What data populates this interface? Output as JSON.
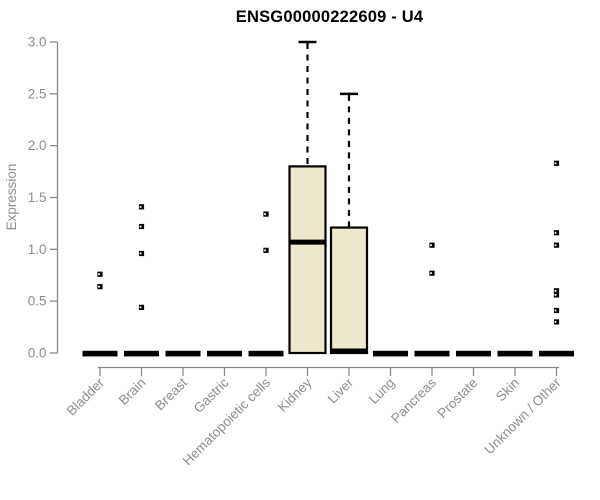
{
  "title": "ENSG00000222609 - U4",
  "chart_data": {
    "type": "boxplot",
    "title": "ENSG00000222609 - U4",
    "ylabel": "Expression",
    "xlabel": "",
    "ylim": [
      0,
      3.0
    ],
    "ytick_step": 0.5,
    "ytick_labels": [
      "0.0",
      "0.5",
      "1.0",
      "1.5",
      "2.0",
      "2.5",
      "3.0"
    ],
    "grid": false,
    "legend": false,
    "categories": [
      "Bladder",
      "Brain",
      "Breast",
      "Gastric",
      "Hematopoietic cells",
      "Kidney",
      "Liver",
      "Lung",
      "Pancreas",
      "Prostate",
      "Skin",
      "Unknown / Other"
    ],
    "boxes": [
      {
        "category": "Bladder",
        "whisker_low": 0,
        "q1": 0,
        "median": 0,
        "q3": 0,
        "whisker_high": 0,
        "outliers": [
          0.76,
          0.64
        ]
      },
      {
        "category": "Brain",
        "whisker_low": 0,
        "q1": 0,
        "median": 0,
        "q3": 0,
        "whisker_high": 0,
        "outliers": [
          1.41,
          1.22,
          0.96,
          0.44
        ]
      },
      {
        "category": "Breast",
        "whisker_low": 0,
        "q1": 0,
        "median": 0,
        "q3": 0,
        "whisker_high": 0,
        "outliers": []
      },
      {
        "category": "Gastric",
        "whisker_low": 0,
        "q1": 0,
        "median": 0,
        "q3": 0,
        "whisker_high": 0,
        "outliers": []
      },
      {
        "category": "Hematopoietic cells",
        "whisker_low": 0,
        "q1": 0,
        "median": 0,
        "q3": 0,
        "whisker_high": 0,
        "outliers": [
          1.34,
          0.99
        ]
      },
      {
        "category": "Kidney",
        "whisker_low": 0,
        "q1": 0,
        "median": 1.07,
        "q3": 1.8,
        "whisker_high": 3.0,
        "outliers": []
      },
      {
        "category": "Liver",
        "whisker_low": 0,
        "q1": 0,
        "median": 0,
        "q3": 1.21,
        "whisker_high": 2.5,
        "outliers": []
      },
      {
        "category": "Lung",
        "whisker_low": 0,
        "q1": 0,
        "median": 0,
        "q3": 0,
        "whisker_high": 0,
        "outliers": []
      },
      {
        "category": "Pancreas",
        "whisker_low": 0,
        "q1": 0,
        "median": 0,
        "q3": 0,
        "whisker_high": 0,
        "outliers": [
          1.04,
          0.77
        ]
      },
      {
        "category": "Prostate",
        "whisker_low": 0,
        "q1": 0,
        "median": 0,
        "q3": 0,
        "whisker_high": 0,
        "outliers": []
      },
      {
        "category": "Skin",
        "whisker_low": 0,
        "q1": 0,
        "median": 0,
        "q3": 0,
        "whisker_high": 0,
        "outliers": []
      },
      {
        "category": "Unknown / Other",
        "whisker_low": 0,
        "q1": 0,
        "median": 0,
        "q3": 0,
        "whisker_high": 0,
        "outliers": [
          1.83,
          1.16,
          1.04,
          0.6,
          0.56,
          0.41,
          0.3
        ]
      }
    ],
    "colors": {
      "box_fill": "#EDE7CB",
      "box_stroke": "#000000",
      "median": "#000000",
      "outlier": "#000000",
      "axis": "#8a8a8a",
      "tick_label": "#8e8e8e",
      "axis_label": "#8e8e8e",
      "title": "#000000",
      "background": "#ffffff"
    }
  }
}
